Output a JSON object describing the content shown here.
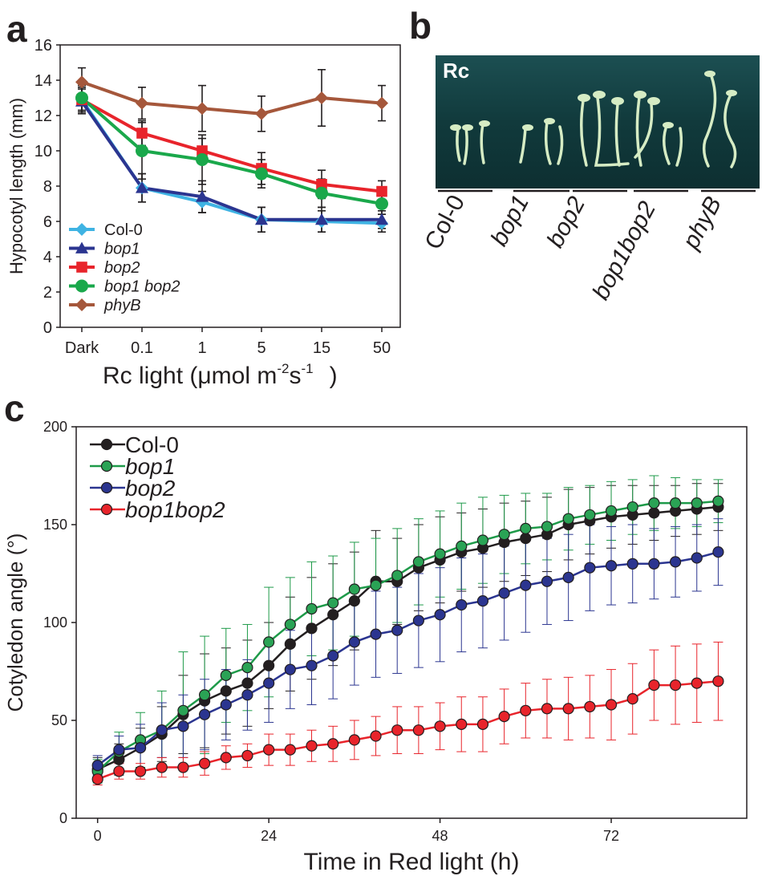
{
  "panels": {
    "a": {
      "letter": "a",
      "chart_data": {
        "type": "line",
        "xlabel_main": "Rc light (μmol m",
        "xlabel_sup1": "-2",
        "xlabel_mid": "s",
        "xlabel_sup2": "-1",
        "xlabel_end": ")",
        "ylabel": "Hypocotyl length (mm)",
        "categories": [
          "Dark",
          "0.1",
          "1",
          "5",
          "15",
          "50"
        ],
        "ylim": [
          0,
          16
        ],
        "yticks": [
          0,
          2,
          4,
          6,
          8,
          10,
          12,
          14,
          16
        ],
        "series": [
          {
            "name": "Col-0",
            "italic": false,
            "color": "#3fb3e3",
            "marker": "diamond",
            "values": [
              12.9,
              7.9,
              7.1,
              6.1,
              6.0,
              5.9
            ],
            "err": [
              0.7,
              0.8,
              0.6,
              0.7,
              0.6,
              0.5
            ]
          },
          {
            "name": "bop1",
            "italic": true,
            "color": "#2b3590",
            "marker": "triangle",
            "values": [
              12.8,
              7.9,
              7.4,
              6.1,
              6.1,
              6.1
            ],
            "err": [
              0.7,
              0.8,
              0.9,
              0.7,
              0.7,
              0.5
            ]
          },
          {
            "name": "bop2",
            "italic": true,
            "color": "#e8242b",
            "marker": "square",
            "values": [
              12.9,
              11.0,
              10.0,
              9.0,
              8.1,
              7.7
            ],
            "err": [
              0.7,
              0.7,
              0.7,
              0.9,
              0.8,
              0.6
            ]
          },
          {
            "name": "bop1 bop2",
            "italic": true,
            "color": "#1aa84b",
            "marker": "circle",
            "values": [
              13.0,
              10.0,
              9.5,
              8.7,
              7.6,
              7.0
            ],
            "err": [
              0.7,
              1.6,
              1.4,
              0.8,
              0.8,
              0.6
            ]
          },
          {
            "name": "phyB",
            "italic": true,
            "color": "#a5573b",
            "marker": "diamond",
            "values": [
              13.9,
              12.7,
              12.4,
              12.1,
              13.0,
              12.7
            ],
            "err": [
              0.8,
              0.9,
              1.3,
              1.0,
              1.6,
              1.0
            ]
          }
        ]
      }
    },
    "b": {
      "letter": "b",
      "photo_label": "Rc",
      "genotypes": [
        "Col-0",
        "bop1",
        "bop2",
        "bop1bop2",
        "phyB"
      ]
    },
    "c": {
      "letter": "c",
      "chart_data": {
        "type": "line",
        "xlabel": "Time in Red light (h)",
        "ylabel": "Cotyledon angle (°)",
        "xlim": [
          -3,
          91
        ],
        "ylim": [
          0,
          200
        ],
        "xticks": [
          0,
          24,
          48,
          72
        ],
        "yticks": [
          0,
          50,
          100,
          150,
          200
        ],
        "x": [
          0,
          3,
          6,
          9,
          12,
          15,
          18,
          21,
          24,
          27,
          30,
          33,
          36,
          39,
          42,
          45,
          48,
          51,
          54,
          57,
          60,
          63,
          66,
          69,
          72,
          75,
          78,
          81,
          84,
          87
        ],
        "series": [
          {
            "name": "Col-0",
            "italic": false,
            "color": "#231f20",
            "fill": "#231f20",
            "values": [
              25,
              30,
              36,
              43,
              53,
              60,
              65,
              69,
              78,
              89,
              97,
              104,
              111,
              121,
              121,
              128,
              132,
              136,
              138,
              141,
              143,
              145,
              150,
              152,
              154,
              155,
              156,
              157,
              158,
              159
            ],
            "err": [
              6,
              8,
              10,
              14,
              20,
              24,
              22,
              22,
              22,
              24,
              26,
              26,
              25,
              26,
              22,
              22,
              22,
              20,
              20,
              20,
              19,
              19,
              18,
              17,
              16,
              15,
              14,
              13,
              13,
              12
            ]
          },
          {
            "name": "bop1",
            "italic": true,
            "color": "#1e9a49",
            "fill": "#2aa355",
            "values": [
              24,
              34,
              40,
              45,
              55,
              63,
              73,
              77,
              90,
              99,
              107,
              110,
              117,
              119,
              124,
              131,
              135,
              139,
              142,
              145,
              148,
              149,
              153,
              155,
              157,
              159,
              161,
              161,
              161,
              162
            ],
            "err": [
              6,
              10,
              14,
              20,
              30,
              30,
              24,
              22,
              28,
              24,
              24,
              24,
              24,
              24,
              24,
              22,
              22,
              22,
              22,
              20,
              18,
              17,
              16,
              15,
              15,
              14,
              14,
              13,
              12,
              11
            ]
          },
          {
            "name": "bop2",
            "italic": true,
            "color": "#2b3590",
            "fill": "#2b3590",
            "values": [
              27,
              35,
              36,
              45,
              47,
              53,
              58,
              63,
              69,
              76,
              78,
              83,
              90,
              94,
              96,
              101,
              104,
              109,
              111,
              115,
              119,
              121,
              123,
              128,
              129,
              130,
              130,
              131,
              133,
              136
            ],
            "err": [
              5,
              7,
              12,
              14,
              16,
              18,
              18,
              18,
              20,
              20,
              20,
              22,
              22,
              22,
              22,
              24,
              24,
              24,
              24,
              24,
              24,
              22,
              22,
              22,
              20,
              20,
              18,
              18,
              17,
              17
            ]
          },
          {
            "name": "bop1bop2",
            "italic": true,
            "color": "#e8242b",
            "fill": "#e8242b",
            "values": [
              20,
              24,
              24,
              26,
              26,
              28,
              31,
              32,
              35,
              35,
              37,
              38,
              40,
              42,
              45,
              45,
              47,
              48,
              48,
              52,
              55,
              56,
              56,
              57,
              58,
              61,
              68,
              68,
              69,
              70
            ],
            "err": [
              3,
              4,
              4,
              5,
              5,
              6,
              6,
              6,
              8,
              8,
              8,
              9,
              10,
              10,
              12,
              12,
              12,
              14,
              14,
              14,
              14,
              15,
              16,
              16,
              18,
              18,
              18,
              20,
              20,
              20
            ]
          }
        ]
      }
    }
  }
}
